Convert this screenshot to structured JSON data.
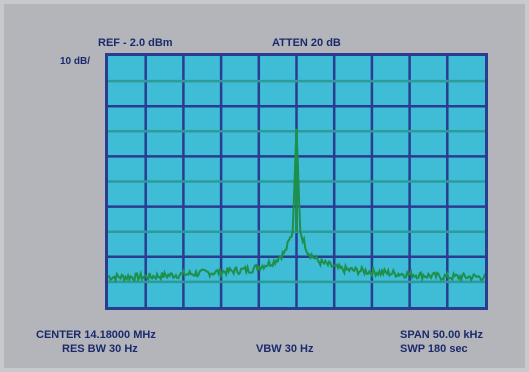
{
  "header": {
    "ref": "REF - 2.0 dBm",
    "atten": "ATTEN 20 dB"
  },
  "scale": "10 dB/",
  "footer": {
    "center": "CENTER 14.18000 MHz",
    "res_bw": "RES BW 30 Hz",
    "vbw": "VBW 30 Hz",
    "span": "SPAN 50.00 kHz",
    "swp": "SWP 180 sec"
  },
  "colors": {
    "screen_bg": "#3fbcd6",
    "grid_dark": "#2a3c8f",
    "grid_mid": "#2f9a9a",
    "trace": "#1f8f4a"
  },
  "chart_data": {
    "type": "line",
    "title": "",
    "xlabel": "",
    "ylabel": "",
    "x_divisions": 10,
    "y_divisions": 10,
    "center_mhz": 14.18,
    "span_khz": 50,
    "ref_dbm": -2.0,
    "db_per_div": 10,
    "grid": true,
    "series": [
      {
        "values_db_below_ref": [
          {
            "x": -25,
            "y": -88
          },
          {
            "x": -20,
            "y": -88
          },
          {
            "x": -15,
            "y": -87
          },
          {
            "x": -10,
            "y": -86
          },
          {
            "x": -6,
            "y": -85
          },
          {
            "x": -3,
            "y": -82
          },
          {
            "x": -1.5,
            "y": -78
          },
          {
            "x": -0.5,
            "y": -70
          },
          {
            "x": 0,
            "y": -29
          },
          {
            "x": 0.5,
            "y": -70
          },
          {
            "x": 1.5,
            "y": -78
          },
          {
            "x": 3,
            "y": -82
          },
          {
            "x": 6,
            "y": -85
          },
          {
            "x": 10,
            "y": -86
          },
          {
            "x": 15,
            "y": -87
          },
          {
            "x": 20,
            "y": -88
          },
          {
            "x": 25,
            "y": -88
          }
        ]
      }
    ]
  }
}
